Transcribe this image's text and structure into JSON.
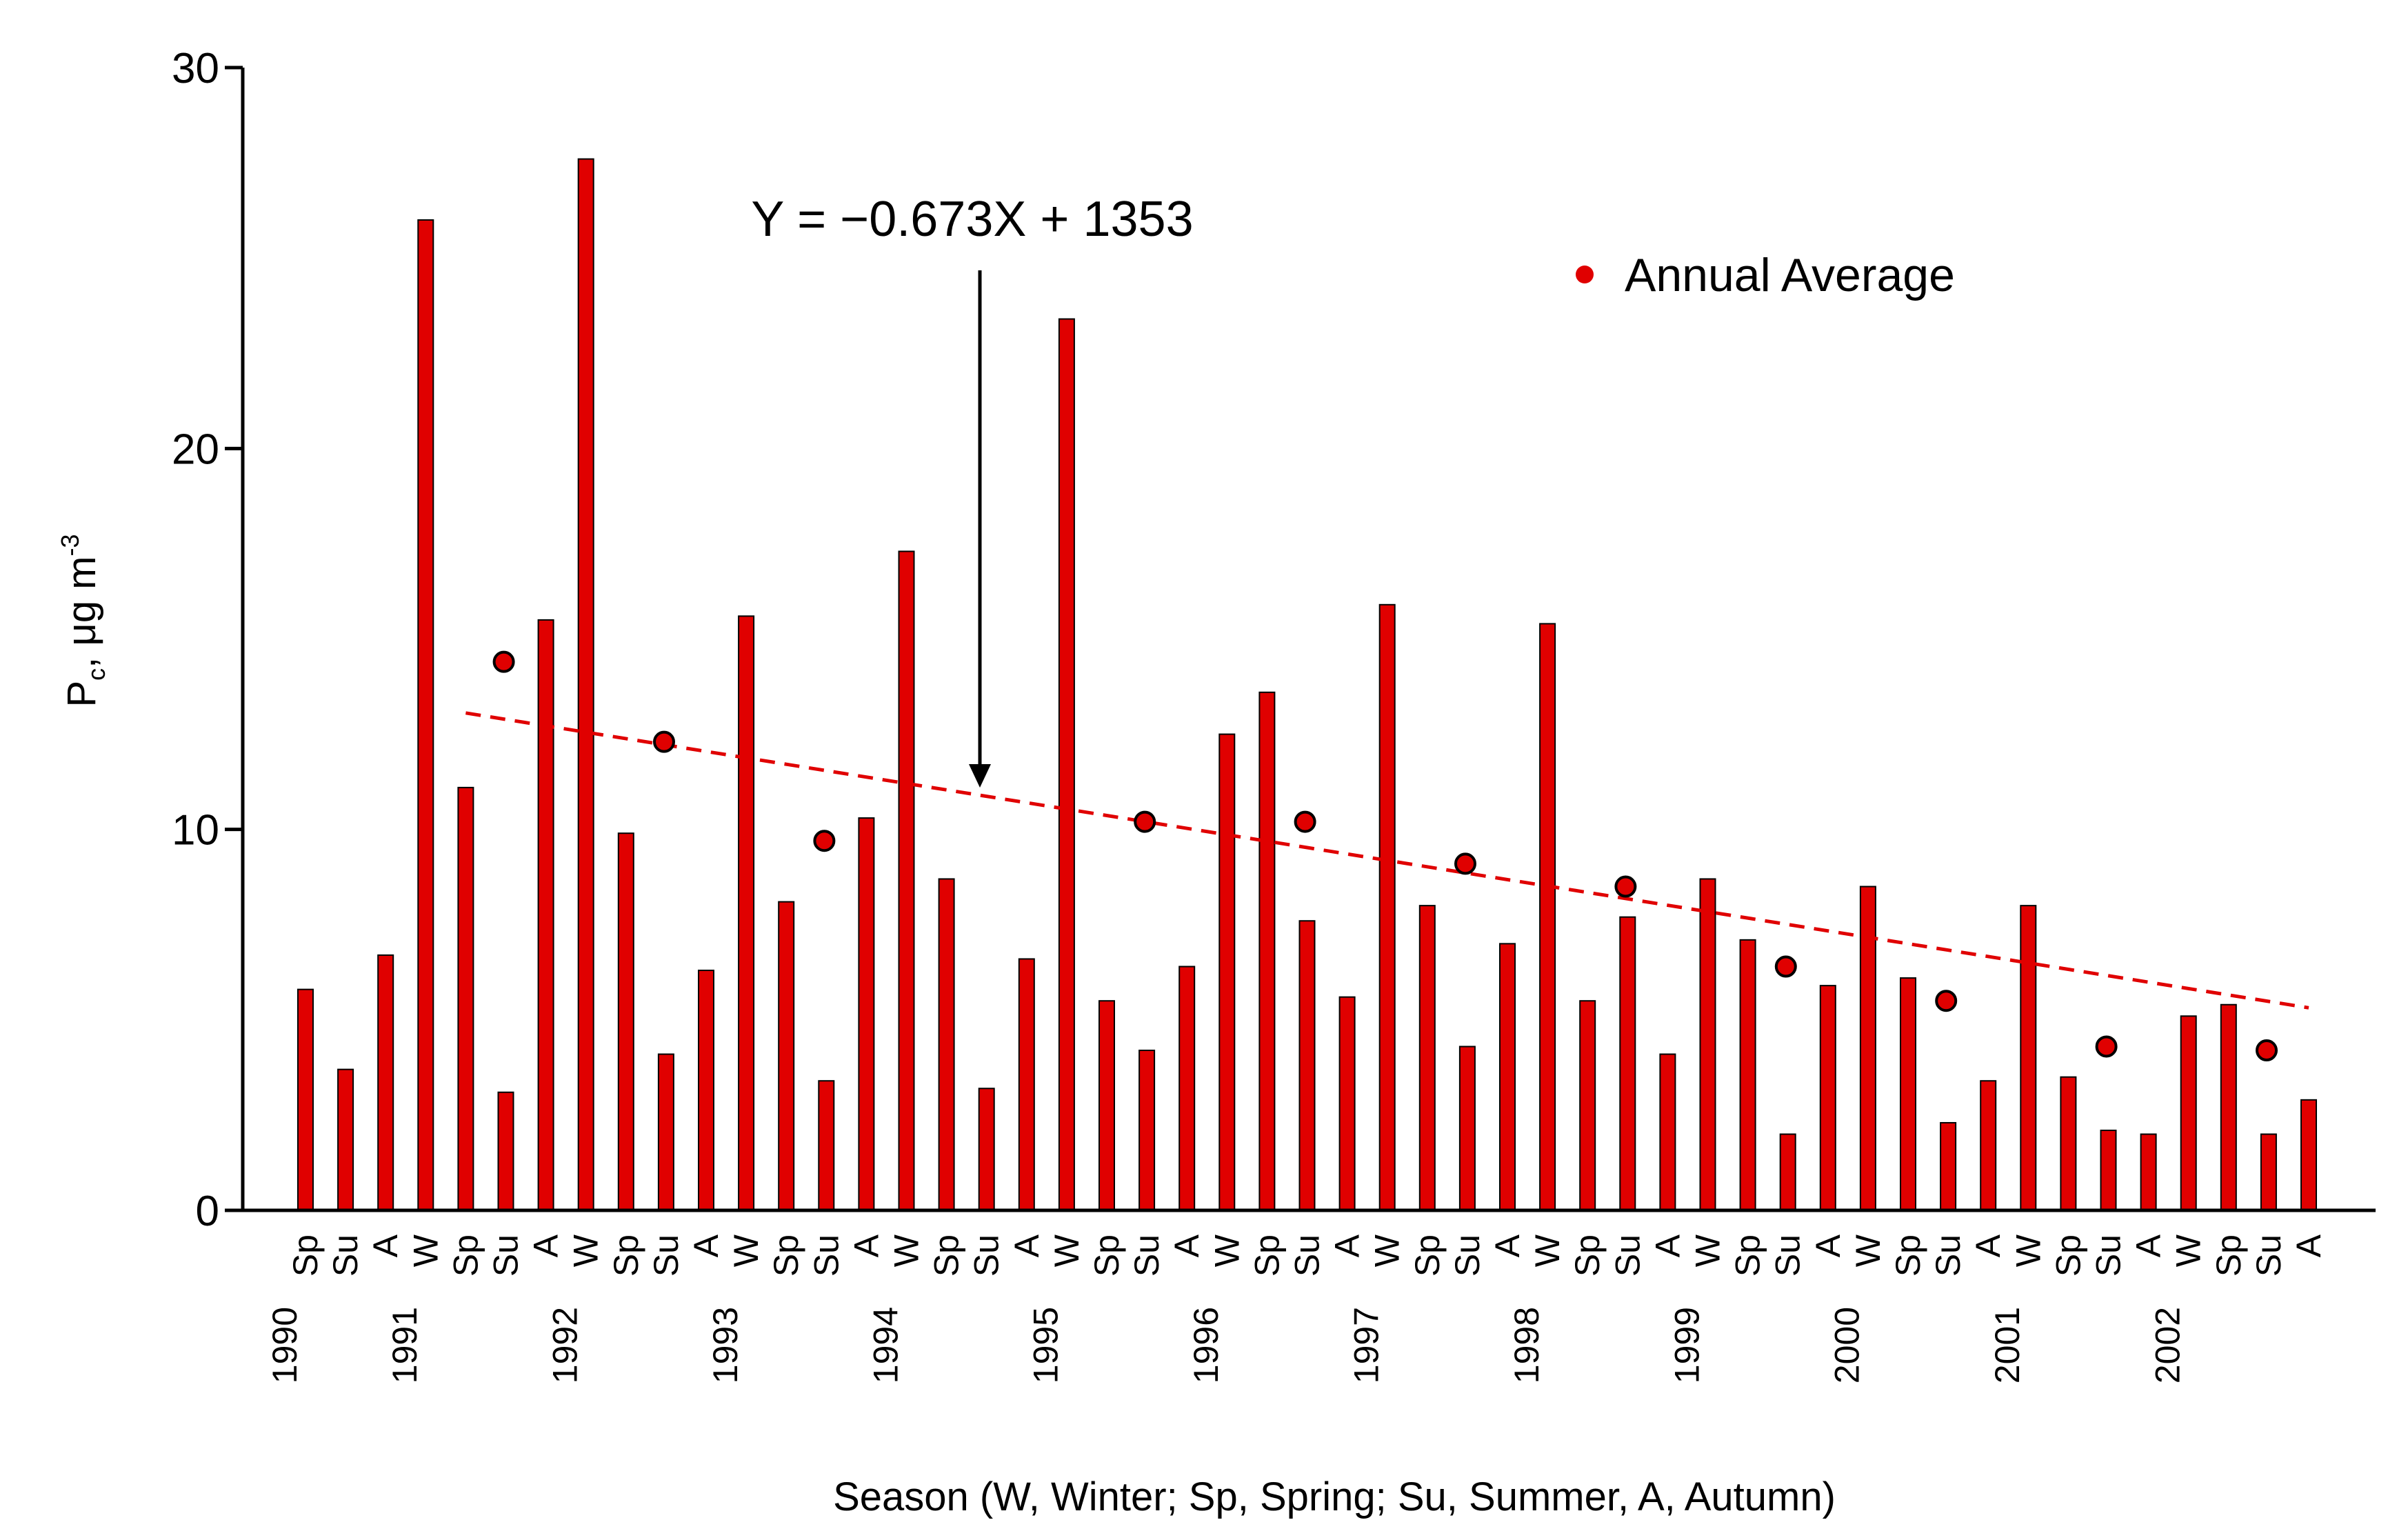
{
  "chart_data": {
    "type": "bar",
    "title": "",
    "xlabel": "Season (W, Winter; Sp, Spring; Su, Summer, A, Autumn)",
    "ylabel": "Pc, μg m-3",
    "ylabel_main": "P",
    "ylabel_sub": "c",
    "ylabel_rest": ", μg m",
    "ylabel_sup": "-3",
    "ylim": [
      0,
      30
    ],
    "yticks": [
      "0",
      "10",
      "20",
      "30"
    ],
    "grid": false,
    "legend": {
      "label": "Annual Average",
      "position": "top-right"
    },
    "annotation": "Y = −0.673X + 1353",
    "trendline": {
      "slope": -0.673,
      "intercept": 1353,
      "from_year": 1991.0,
      "to_year": 2002.5
    },
    "colors": {
      "bar": "#e00000",
      "bar_edge": "#000000",
      "marker": "#e00000",
      "trend": "#e00000",
      "axis": "#000000"
    },
    "categories": [
      {
        "season": "Sp",
        "year": "1990",
        "value": 5.8
      },
      {
        "season": "Su",
        "value": 3.7
      },
      {
        "season": "A",
        "value": 6.7
      },
      {
        "season": "W",
        "year": "1991",
        "value": 26.0
      },
      {
        "season": "Sp",
        "value": 11.1
      },
      {
        "season": "Su",
        "value": 3.1
      },
      {
        "season": "A",
        "value": 15.5
      },
      {
        "season": "W",
        "year": "1992",
        "value": 27.6
      },
      {
        "season": "Sp",
        "value": 9.9
      },
      {
        "season": "Su",
        "value": 4.1
      },
      {
        "season": "A",
        "value": 6.3
      },
      {
        "season": "W",
        "year": "1993",
        "value": 15.6
      },
      {
        "season": "Sp",
        "value": 8.1
      },
      {
        "season": "Su",
        "value": 3.4
      },
      {
        "season": "A",
        "value": 10.3
      },
      {
        "season": "W",
        "year": "1994",
        "value": 17.3
      },
      {
        "season": "Sp",
        "value": 8.7
      },
      {
        "season": "Su",
        "value": 3.2
      },
      {
        "season": "A",
        "value": 6.6
      },
      {
        "season": "W",
        "year": "1995",
        "value": 23.4
      },
      {
        "season": "Sp",
        "value": 5.5
      },
      {
        "season": "Su",
        "value": 4.2
      },
      {
        "season": "A",
        "value": 6.4
      },
      {
        "season": "W",
        "year": "1996",
        "value": 12.5
      },
      {
        "season": "Sp",
        "value": 13.6
      },
      {
        "season": "Su",
        "value": 7.6
      },
      {
        "season": "A",
        "value": 5.6
      },
      {
        "season": "W",
        "year": "1997",
        "value": 15.9
      },
      {
        "season": "Sp",
        "value": 8.0
      },
      {
        "season": "Su",
        "value": 4.3
      },
      {
        "season": "A",
        "value": 7.0
      },
      {
        "season": "W",
        "year": "1998",
        "value": 15.4
      },
      {
        "season": "Sp",
        "value": 5.5
      },
      {
        "season": "Su",
        "value": 7.7
      },
      {
        "season": "A",
        "value": 4.1
      },
      {
        "season": "W",
        "year": "1999",
        "value": 8.7
      },
      {
        "season": "Sp",
        "value": 7.1
      },
      {
        "season": "Su",
        "value": 2.0
      },
      {
        "season": "A",
        "value": 5.9
      },
      {
        "season": "W",
        "year": "2000",
        "value": 8.5
      },
      {
        "season": "Sp",
        "value": 6.1
      },
      {
        "season": "Su",
        "value": 2.3
      },
      {
        "season": "A",
        "value": 3.4
      },
      {
        "season": "W",
        "year": "2001",
        "value": 8.0
      },
      {
        "season": "Sp",
        "value": 3.5
      },
      {
        "season": "Su",
        "value": 2.1
      },
      {
        "season": "A",
        "value": 2.0
      },
      {
        "season": "W",
        "year": "2002",
        "value": 5.1
      },
      {
        "season": "Sp",
        "value": 5.4
      },
      {
        "season": "Su",
        "value": 2.0
      },
      {
        "season": "A",
        "value": 2.9
      }
    ],
    "annual_average": [
      {
        "year": 1991,
        "value": 14.4
      },
      {
        "year": 1992,
        "value": 12.3
      },
      {
        "year": 1993,
        "value": 9.7
      },
      {
        "year": 1995,
        "value": 10.2
      },
      {
        "year": 1996,
        "value": 10.2
      },
      {
        "year": 1997,
        "value": 9.1
      },
      {
        "year": 1998,
        "value": 8.5
      },
      {
        "year": 1999,
        "value": 6.4
      },
      {
        "year": 2000,
        "value": 5.5
      },
      {
        "year": 2001,
        "value": 4.3
      },
      {
        "year": 2002,
        "value": 4.2
      }
    ]
  }
}
